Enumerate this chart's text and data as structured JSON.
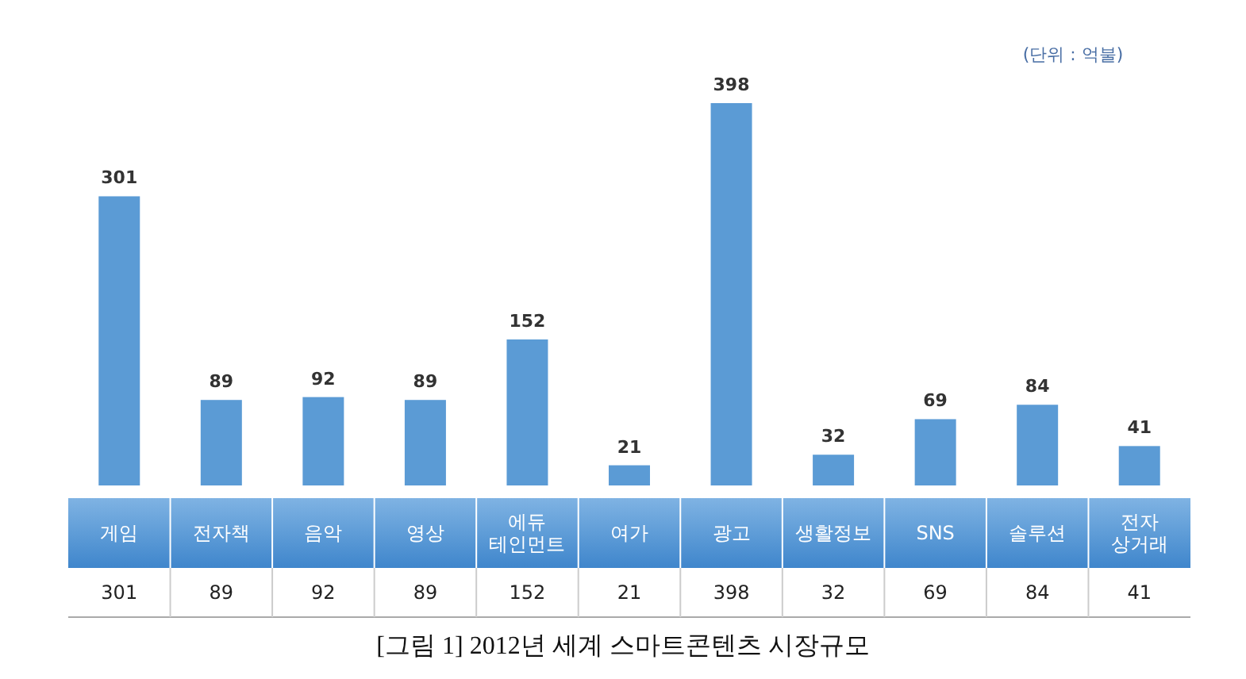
{
  "chart_data": {
    "type": "bar",
    "title": "[그림 1] 2012년 세계 스마트콘텐츠 시장규모",
    "annotations": [
      "(단위 : 억불)",
      "301",
      "89",
      "92",
      "89",
      "152",
      "21",
      "398",
      "32",
      "69",
      "84",
      "41"
    ],
    "categories": [
      "게임",
      "전자책",
      "음악",
      "영상",
      "에듀\n테인먼트",
      "여가",
      "광고",
      "생활정보",
      "SNS",
      "솔루션",
      "전자\n상거래"
    ],
    "values": [
      301,
      89,
      92,
      89,
      152,
      21,
      398,
      32,
      69,
      84,
      41
    ],
    "value_labels": [
      "301",
      "89",
      "92",
      "89",
      "152",
      "21",
      "398",
      "32",
      "69",
      "84",
      "41"
    ],
    "color": "#5b9bd5",
    "data_labels": true
  }
}
